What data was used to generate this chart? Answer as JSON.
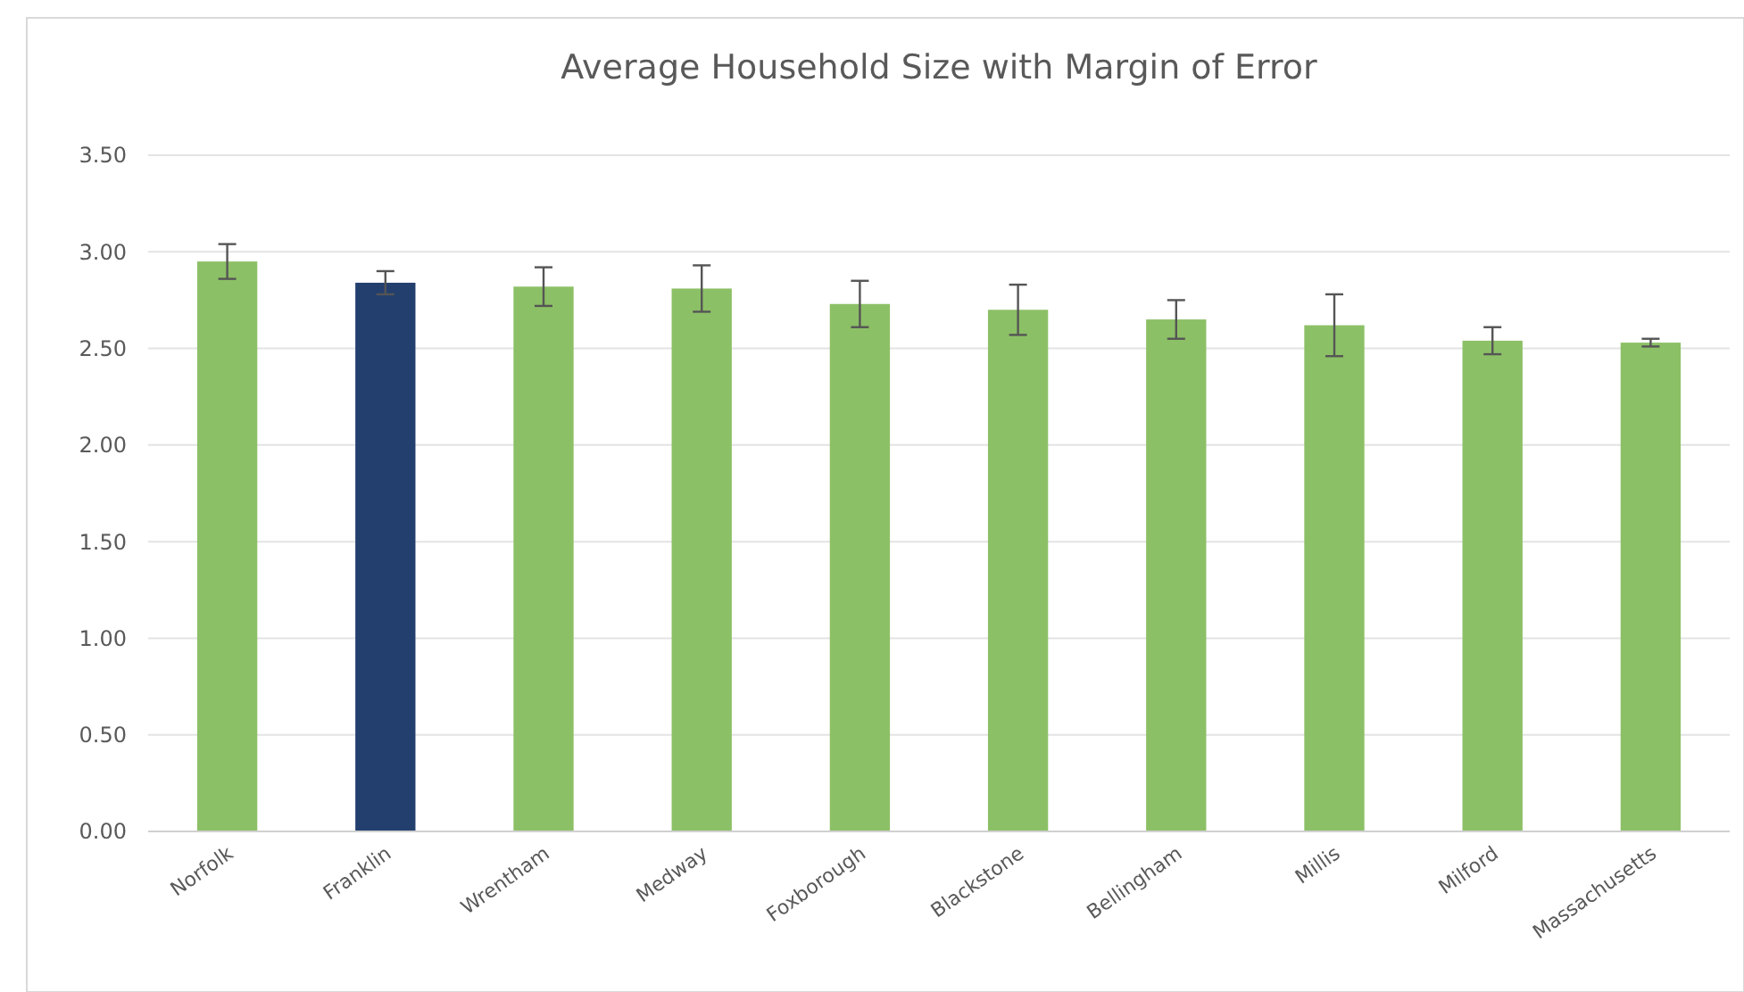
{
  "chart_data": {
    "type": "bar",
    "title": "Average Household Size with Margin of Error",
    "categories": [
      "Norfolk",
      "Franklin",
      "Wrentham",
      "Medway",
      "Foxborough",
      "Blackstone",
      "Bellingham",
      "Millis",
      "Milford",
      "Massachusetts"
    ],
    "values": [
      2.95,
      2.84,
      2.82,
      2.81,
      2.73,
      2.7,
      2.65,
      2.62,
      2.54,
      2.53
    ],
    "errors": [
      0.09,
      0.06,
      0.1,
      0.12,
      0.12,
      0.13,
      0.1,
      0.16,
      0.07,
      0.02
    ],
    "colors": [
      "#8cc066",
      "#233f6e",
      "#8cc066",
      "#8cc066",
      "#8cc066",
      "#8cc066",
      "#8cc066",
      "#8cc066",
      "#8cc066",
      "#8cc066"
    ],
    "ylim": [
      0,
      3.5
    ],
    "yticks": [
      {
        "value": 0,
        "label": "0.00"
      },
      {
        "value": 0.5,
        "label": "0.50"
      },
      {
        "value": 1,
        "label": "1.00"
      },
      {
        "value": 1.5,
        "label": "1.50"
      },
      {
        "value": 2,
        "label": "2.00"
      },
      {
        "value": 2.5,
        "label": "2.50"
      },
      {
        "value": 3,
        "label": "3.00"
      },
      {
        "value": 3.5,
        "label": "3.50"
      }
    ],
    "grid": "y"
  }
}
